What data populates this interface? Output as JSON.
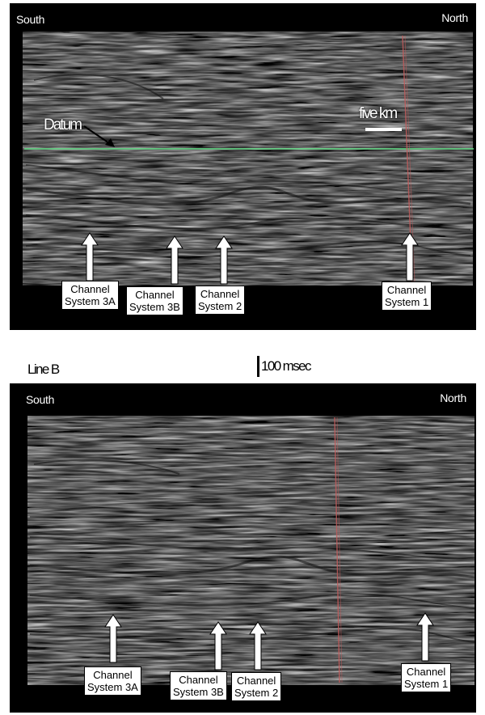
{
  "panel_a": {
    "left_label": "South",
    "right_label": "North",
    "datum_label": "Datum",
    "scale_label": "five km",
    "channels": [
      {
        "line1": "Channel",
        "line2": "System 3A"
      },
      {
        "line1": "Channel",
        "line2": "System 3B"
      },
      {
        "line1": "Channel",
        "line2": "System 2"
      },
      {
        "line1": "Channel",
        "line2": "System 1"
      }
    ]
  },
  "line_b_label": "Line B",
  "time_scale_label": "100 msec",
  "panel_b": {
    "left_label": "South",
    "right_label": "North",
    "channels": [
      {
        "line1": "Channel",
        "line2": "System 3A"
      },
      {
        "line1": "Channel",
        "line2": "System 3B"
      },
      {
        "line1": "Channel",
        "line2": "System 2"
      },
      {
        "line1": "Channel",
        "line2": "System 1"
      }
    ]
  },
  "colors": {
    "datum_line": "#66e08a",
    "fault_trace": "#c45a5a",
    "panel_background": "#000000"
  }
}
